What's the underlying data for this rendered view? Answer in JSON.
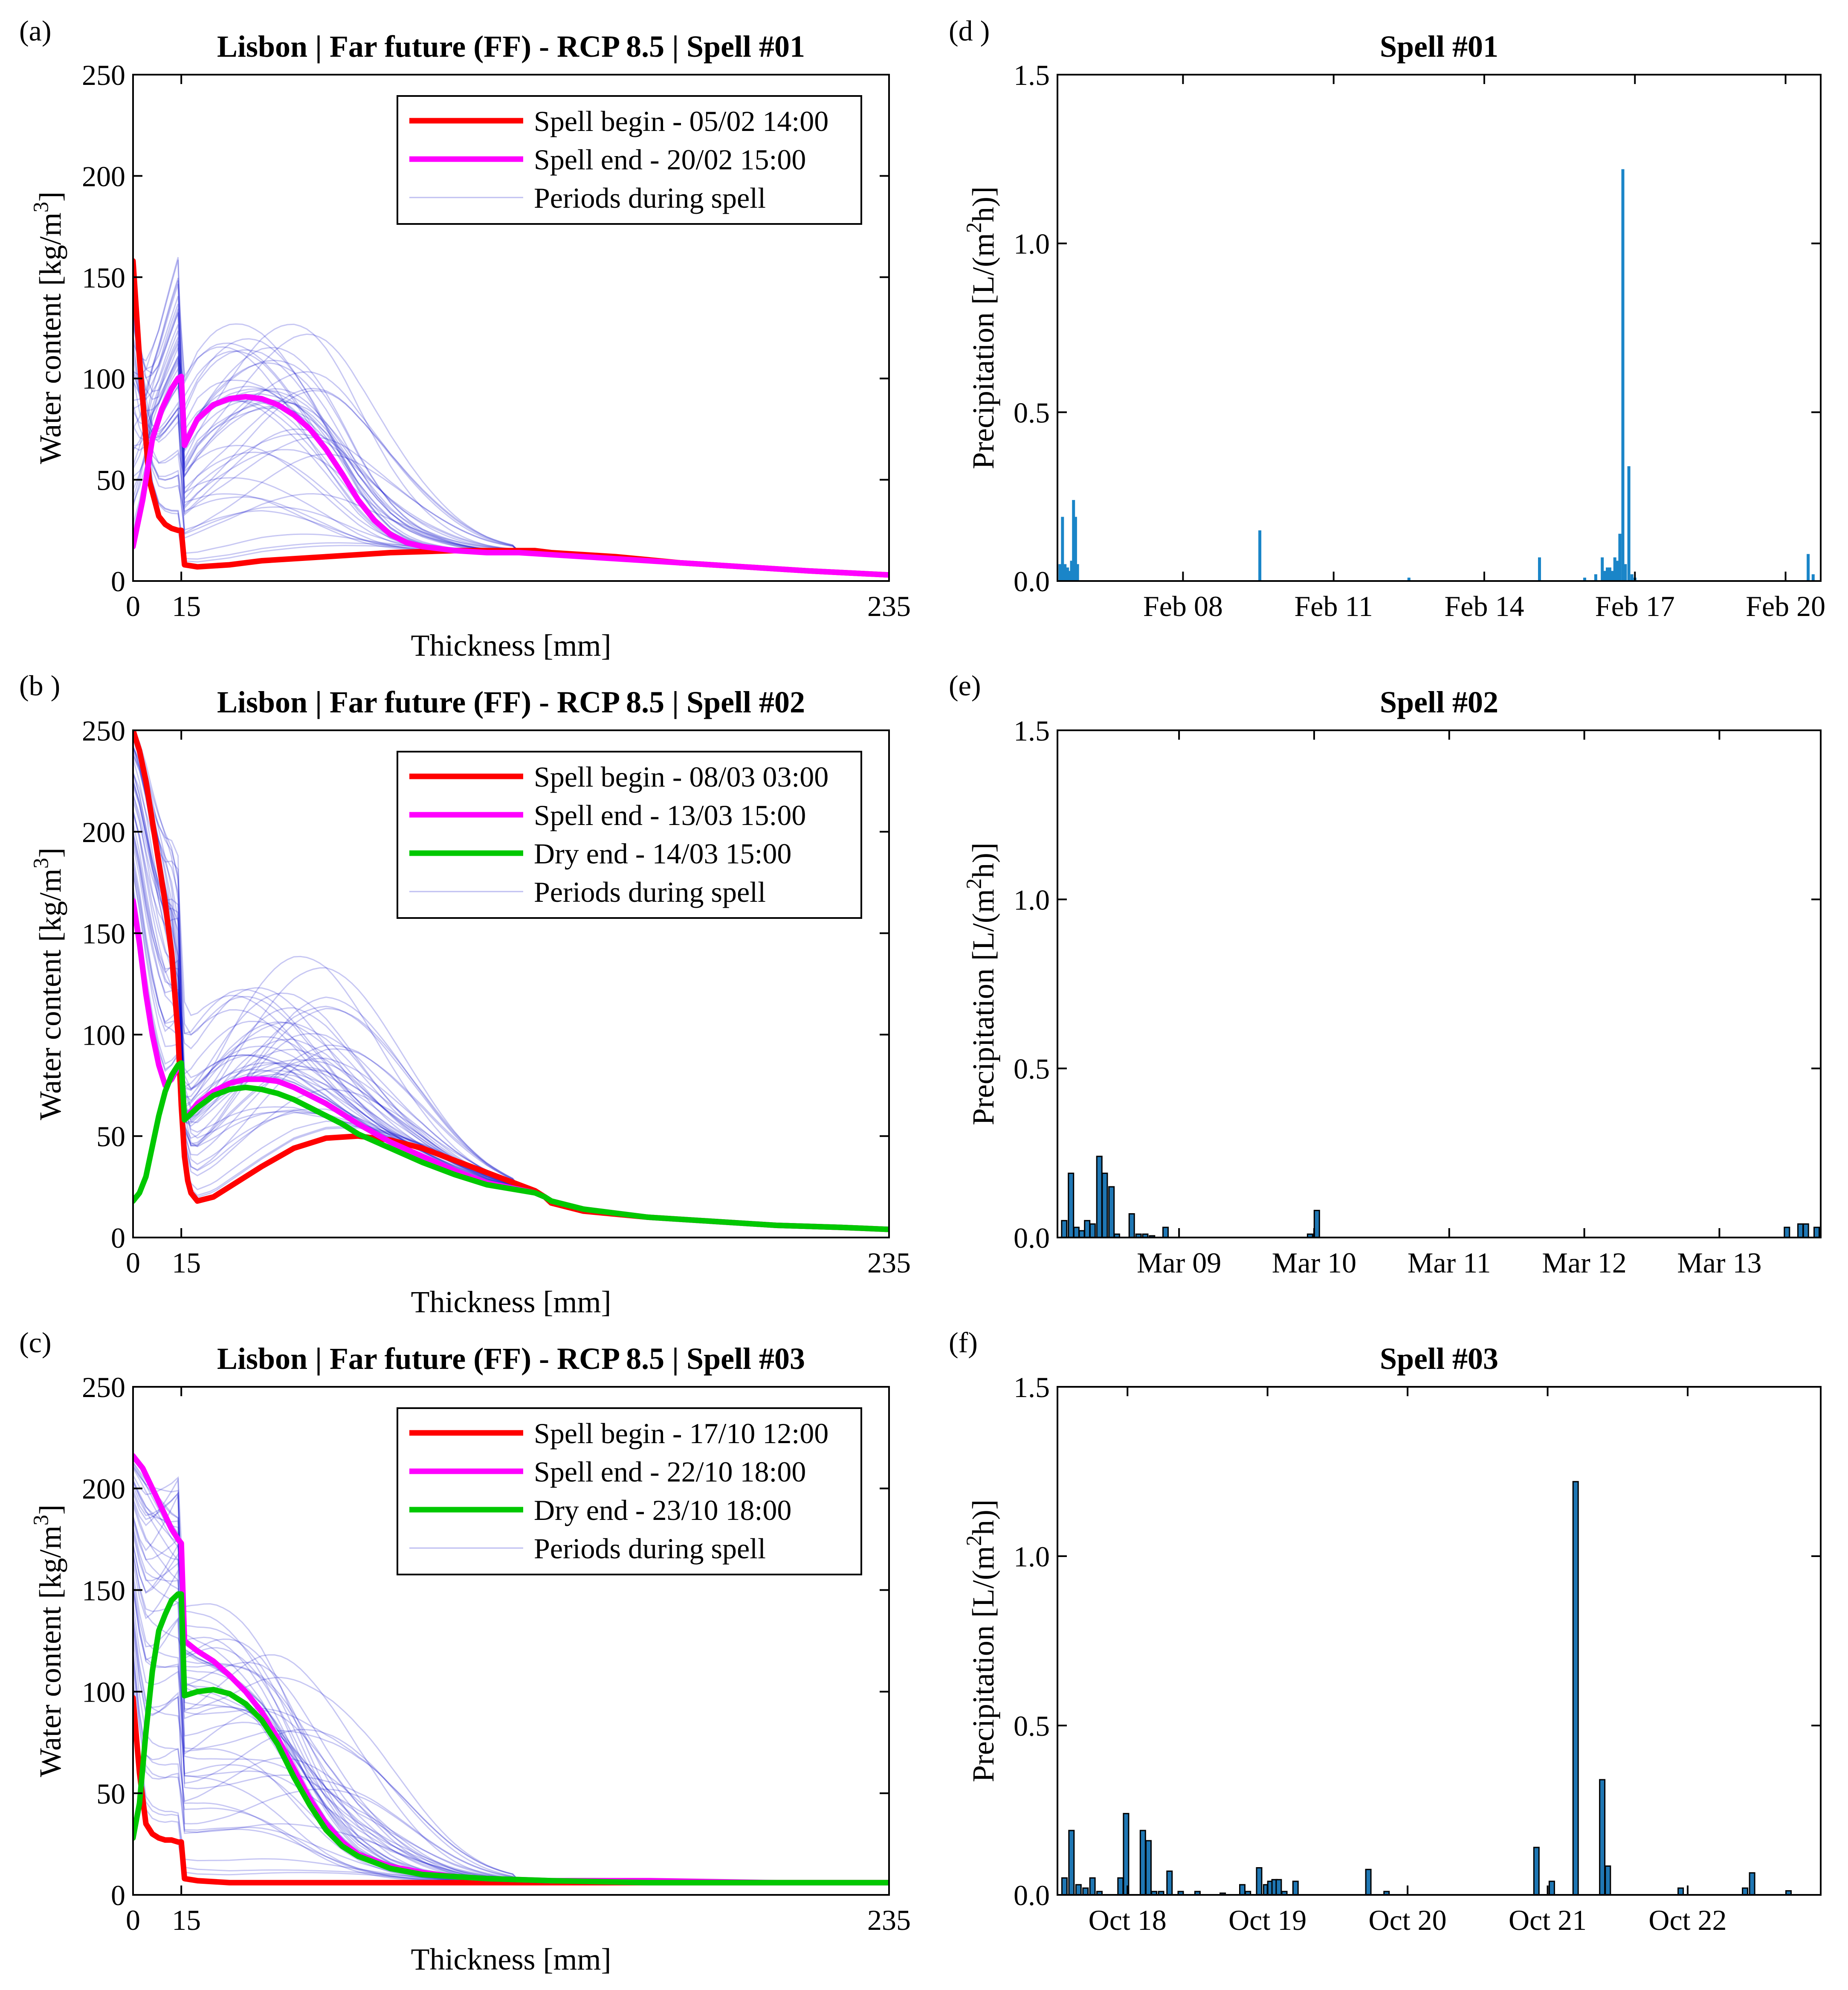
{
  "chart_data": [
    {
      "type": "line",
      "panel_label": "(a)",
      "title": "Lisbon | Far future (FF) - RCP 8.5 | Spell #01",
      "xlabel": "Thickness [mm]",
      "ylabel_main": "Water content [kg/m",
      "ylabel_sup": "3",
      "ylabel_end": "]",
      "xlim": [
        0,
        235
      ],
      "ylim": [
        0,
        250
      ],
      "xticks": [
        "0",
        "15",
        "235"
      ],
      "yticks": [
        "0",
        "50",
        "100",
        "150",
        "200",
        "250"
      ],
      "legend": [
        "Spell begin - 05/02 14:00",
        "Spell end - 20/02 15:00",
        "Periods during spell"
      ],
      "colors": {
        "begin": "#ff0000",
        "end": "#ff00ff",
        "dry": "#00c800",
        "periods": "#0000c8"
      },
      "series": [
        {
          "name": "Spell begin - 05/02 14:00",
          "role": "begin",
          "x": [
            0,
            2,
            5,
            8,
            10,
            12,
            14,
            15,
            16,
            20,
            30,
            40,
            60,
            80,
            100,
            110,
            120,
            125,
            130,
            150,
            170,
            190,
            210,
            235
          ],
          "y": [
            158,
            110,
            50,
            32,
            28,
            26,
            25,
            25,
            8,
            7,
            8,
            10,
            12,
            14,
            15,
            15,
            15,
            15,
            14,
            12,
            9,
            7,
            5,
            3
          ]
        },
        {
          "name": "Spell end - 20/02 15:00",
          "role": "end",
          "x": [
            0,
            3,
            6,
            9,
            12,
            14,
            15,
            16,
            20,
            25,
            30,
            35,
            40,
            45,
            50,
            55,
            60,
            65,
            70,
            75,
            80,
            85,
            90,
            100,
            110,
            120,
            130,
            150,
            170,
            190,
            210,
            235
          ],
          "y": [
            17,
            40,
            70,
            85,
            95,
            100,
            101,
            67,
            80,
            87,
            90,
            91,
            90,
            87,
            82,
            75,
            65,
            53,
            40,
            30,
            23,
            19,
            17,
            15,
            14,
            14,
            13,
            11,
            9,
            7,
            5,
            3
          ]
        }
      ],
      "periods_note": "Periods during spell"
    },
    {
      "type": "line",
      "panel_label": "(b )",
      "title": "Lisbon | Far future (FF) - RCP 8.5 | Spell #02",
      "xlabel": "Thickness [mm]",
      "ylabel_main": "Water content [kg/m",
      "ylabel_sup": "3",
      "ylabel_end": "]",
      "xlim": [
        0,
        235
      ],
      "ylim": [
        0,
        250
      ],
      "xticks": [
        "0",
        "15",
        "235"
      ],
      "yticks": [
        "0",
        "50",
        "100",
        "150",
        "200",
        "250"
      ],
      "legend": [
        "Spell begin - 08/03 03:00",
        "Spell end - 13/03 15:00",
        "Dry end - 14/03 15:00",
        "Periods during spell"
      ],
      "colors": {
        "begin": "#ff0000",
        "end": "#ff00ff",
        "dry": "#00c800",
        "periods": "#0000c8"
      },
      "series": [
        {
          "name": "Spell begin - 08/03 03:00",
          "role": "begin",
          "x": [
            0,
            2,
            4,
            6,
            8,
            10,
            12,
            14,
            15,
            16,
            17,
            18,
            20,
            25,
            30,
            40,
            50,
            60,
            70,
            80,
            90,
            100,
            110,
            125,
            128,
            130,
            140,
            160,
            180,
            200,
            220,
            235
          ],
          "y": [
            250,
            240,
            225,
            205,
            185,
            165,
            140,
            100,
            65,
            40,
            28,
            22,
            18,
            20,
            25,
            35,
            44,
            49,
            50,
            48,
            44,
            38,
            32,
            23,
            20,
            17,
            13,
            10,
            8,
            6,
            5,
            4
          ]
        },
        {
          "name": "Spell end - 13/03 15:00",
          "role": "end",
          "x": [
            0,
            2,
            4,
            6,
            8,
            10,
            12,
            14,
            15,
            16,
            20,
            25,
            30,
            35,
            40,
            45,
            50,
            55,
            60,
            65,
            70,
            80,
            90,
            100,
            110,
            125,
            128,
            130,
            140,
            160,
            180,
            200,
            220,
            235
          ],
          "y": [
            166,
            145,
            120,
            100,
            85,
            75,
            78,
            84,
            86,
            58,
            66,
            72,
            76,
            78,
            78,
            77,
            74,
            70,
            66,
            61,
            56,
            47,
            40,
            33,
            27,
            22,
            20,
            18,
            14,
            10,
            8,
            6,
            5,
            4
          ]
        },
        {
          "name": "Dry end - 14/03 15:00",
          "role": "dry",
          "x": [
            0,
            2,
            4,
            6,
            8,
            10,
            12,
            14,
            15,
            16,
            20,
            25,
            30,
            35,
            40,
            45,
            50,
            55,
            60,
            65,
            70,
            80,
            90,
            100,
            110,
            125,
            128,
            130,
            140,
            160,
            180,
            200,
            220,
            235
          ],
          "y": [
            18,
            22,
            30,
            45,
            60,
            72,
            80,
            85,
            86,
            58,
            64,
            70,
            73,
            74,
            73,
            71,
            68,
            64,
            60,
            56,
            51,
            44,
            37,
            31,
            26,
            22,
            20,
            18,
            14,
            10,
            8,
            6,
            5,
            4
          ]
        }
      ],
      "periods_note": "Periods during spell"
    },
    {
      "type": "line",
      "panel_label": "(c)",
      "title": "Lisbon | Far future (FF) - RCP 8.5 | Spell #03",
      "xlabel": "Thickness [mm]",
      "ylabel_main": "Water content [kg/m",
      "ylabel_sup": "3",
      "ylabel_end": "]",
      "xlim": [
        0,
        235
      ],
      "ylim": [
        0,
        250
      ],
      "xticks": [
        "0",
        "15",
        "235"
      ],
      "yticks": [
        "0",
        "50",
        "100",
        "150",
        "200",
        "250"
      ],
      "legend": [
        "Spell begin - 17/10 12:00",
        "Spell end - 22/10 18:00",
        "Dry end - 23/10 18:00",
        "Periods during spell"
      ],
      "colors": {
        "begin": "#ff0000",
        "end": "#ff00ff",
        "dry": "#00c800",
        "periods": "#0000c8"
      },
      "series": [
        {
          "name": "Spell begin - 17/10 12:00",
          "role": "begin",
          "x": [
            0,
            2,
            4,
            6,
            8,
            10,
            12,
            14,
            15,
            16,
            20,
            30,
            40,
            60,
            80,
            100,
            130,
            160,
            200,
            235
          ],
          "y": [
            97,
            60,
            35,
            30,
            28,
            27,
            27,
            26,
            26,
            8,
            7,
            6,
            6,
            6,
            6,
            6,
            6,
            6,
            6,
            6
          ]
        },
        {
          "name": "Spell end - 22/10 18:00",
          "role": "end",
          "x": [
            0,
            3,
            6,
            9,
            12,
            14,
            15,
            16,
            20,
            25,
            30,
            35,
            40,
            45,
            50,
            55,
            60,
            65,
            70,
            80,
            90,
            100,
            110,
            130,
            160,
            200,
            235
          ],
          "y": [
            216,
            210,
            200,
            190,
            180,
            175,
            173,
            125,
            120,
            115,
            108,
            100,
            90,
            77,
            62,
            47,
            35,
            26,
            20,
            14,
            11,
            9,
            8,
            7,
            7,
            6,
            6
          ]
        },
        {
          "name": "Dry end - 23/10 18:00",
          "role": "dry",
          "x": [
            0,
            2,
            4,
            6,
            8,
            10,
            12,
            14,
            15,
            16,
            20,
            25,
            30,
            35,
            40,
            45,
            50,
            55,
            60,
            65,
            70,
            80,
            90,
            100,
            110,
            130,
            160,
            200,
            235
          ],
          "y": [
            28,
            45,
            80,
            110,
            130,
            138,
            145,
            148,
            148,
            98,
            100,
            101,
            99,
            94,
            86,
            74,
            58,
            44,
            32,
            24,
            19,
            13,
            10,
            9,
            8,
            7,
            6,
            6,
            6
          ]
        }
      ],
      "periods_note": "Periods during spell"
    },
    {
      "type": "bar",
      "panel_label": "(d )",
      "title": "Spell #01",
      "ylabel_main": "Precipitation [L/(m",
      "ylabel_sup": "2",
      "ylabel_end": "h)]",
      "bar_style": "thin",
      "xlim": [
        5.0,
        20.2
      ],
      "ylim": [
        0,
        1.5
      ],
      "yticks": [
        "0.0",
        "0.5",
        "1.0",
        "1.5"
      ],
      "xtick_positions": [
        7.5,
        10.5,
        13.5,
        16.5,
        19.5
      ],
      "xticks": [
        "Feb 08",
        "Feb 11",
        "Feb 14",
        "Feb 17",
        "Feb 20"
      ],
      "bars": {
        "t": [
          5.05,
          5.1,
          5.15,
          5.2,
          5.25,
          5.28,
          5.32,
          5.36,
          5.4,
          9.03,
          12.0,
          14.6,
          15.5,
          15.72,
          15.85,
          15.9,
          15.95,
          16.0,
          16.05,
          16.1,
          16.15,
          16.2,
          16.26,
          16.31,
          16.38,
          16.44,
          16.5,
          19.95,
          20.05
        ],
        "v": [
          0.05,
          0.19,
          0.05,
          0.04,
          0.03,
          0.06,
          0.24,
          0.19,
          0.05,
          0.15,
          0.01,
          0.07,
          0.01,
          0.02,
          0.07,
          0.03,
          0.04,
          0.04,
          0.03,
          0.07,
          0.06,
          0.14,
          1.22,
          0.05,
          0.34,
          0.02,
          0.01,
          0.08,
          0.02
        ]
      }
    },
    {
      "type": "bar",
      "panel_label": "(e)",
      "title": "Spell #02",
      "ylabel_main": "Precipitation [L/(m",
      "ylabel_sup": "2",
      "ylabel_end": "h)]",
      "bar_style": "wide",
      "xlim": [
        8.1,
        13.75
      ],
      "ylim": [
        0,
        1.5
      ],
      "yticks": [
        "0.0",
        "0.5",
        "1.0",
        "1.5"
      ],
      "xtick_positions": [
        9.0,
        10.0,
        11.0,
        12.0,
        13.0
      ],
      "xticks": [
        "Mar 09",
        "Mar 10",
        "Mar 11",
        "Mar 12",
        "Mar 13"
      ],
      "bars": {
        "t": [
          8.15,
          8.2,
          8.24,
          8.28,
          8.32,
          8.36,
          8.41,
          8.45,
          8.5,
          8.54,
          8.65,
          8.7,
          8.75,
          8.8,
          8.9,
          9.97,
          10.02,
          13.5,
          13.6,
          13.64,
          13.72
        ],
        "v": [
          0.05,
          0.19,
          0.03,
          0.02,
          0.05,
          0.04,
          0.24,
          0.19,
          0.15,
          0.01,
          0.07,
          0.01,
          0.01,
          0.005,
          0.03,
          0.01,
          0.08,
          0.03,
          0.04,
          0.04,
          0.03
        ]
      }
    },
    {
      "type": "bar",
      "panel_label": "(f)",
      "title": "Spell #03",
      "ylabel_main": "Precipitation [L/(m",
      "ylabel_sup": "2",
      "ylabel_end": "h)]",
      "bar_style": "wide",
      "xlim": [
        17.5,
        22.95
      ],
      "ylim": [
        0,
        1.5
      ],
      "yticks": [
        "0.0",
        "0.5",
        "1.0",
        "1.5"
      ],
      "xtick_positions": [
        18.0,
        19.0,
        20.0,
        21.0,
        22.0
      ],
      "xticks": [
        "Oct 18",
        "Oct 19",
        "Oct 20",
        "Oct 21",
        "Oct 22"
      ],
      "bars": {
        "t": [
          17.55,
          17.6,
          17.65,
          17.7,
          17.75,
          17.8,
          17.95,
          17.99,
          18.11,
          18.15,
          18.19,
          18.24,
          18.3,
          18.38,
          18.5,
          18.68,
          18.82,
          18.86,
          18.94,
          18.99,
          19.02,
          19.05,
          19.08,
          19.12,
          19.2,
          19.72,
          19.85,
          20.92,
          21.03,
          21.2,
          21.39,
          21.43,
          21.95,
          22.41,
          22.46,
          22.72
        ],
        "v": [
          0.05,
          0.19,
          0.03,
          0.02,
          0.05,
          0.01,
          0.05,
          0.24,
          0.19,
          0.16,
          0.01,
          0.01,
          0.07,
          0.01,
          0.01,
          0.005,
          0.03,
          0.01,
          0.08,
          0.03,
          0.04,
          0.045,
          0.045,
          0.01,
          0.04,
          0.075,
          0.01,
          0.14,
          0.04,
          1.22,
          0.34,
          0.085,
          0.02,
          0.02,
          0.065,
          0.012
        ]
      }
    }
  ]
}
